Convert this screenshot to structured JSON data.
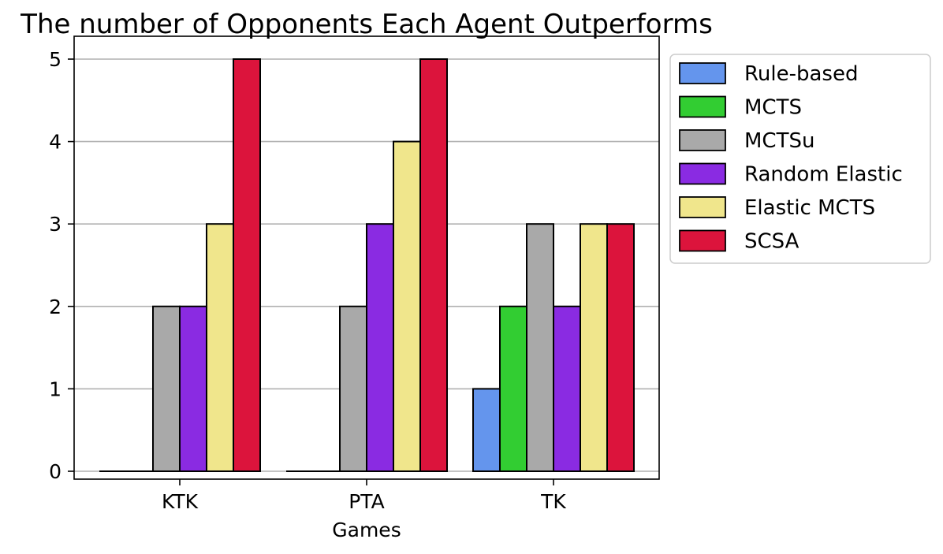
{
  "chart_data": {
    "type": "bar",
    "title": "The number of Opponents Each Agent Outperforms",
    "xlabel": "Games",
    "ylabel": "",
    "categories": [
      "KTK",
      "PTA",
      "TK"
    ],
    "ylim": [
      0,
      5
    ],
    "yticks": [
      "0",
      "1",
      "2",
      "3",
      "4",
      "5"
    ],
    "grid": "horizontal",
    "legend_position": "outside right",
    "series": [
      {
        "name": "Rule-based",
        "color": "#6495ED",
        "values": [
          0,
          0,
          1
        ]
      },
      {
        "name": "MCTS",
        "color": "#32CD32",
        "values": [
          0,
          0,
          2
        ]
      },
      {
        "name": "MCTSu",
        "color": "#A9A9A9",
        "values": [
          2,
          2,
          3
        ]
      },
      {
        "name": "Random Elastic",
        "color": "#8A2BE2",
        "values": [
          2,
          3,
          2
        ]
      },
      {
        "name": "Elastic MCTS",
        "color": "#F0E68C",
        "values": [
          3,
          4,
          3
        ]
      },
      {
        "name": "SCSA",
        "color": "#DC143C",
        "values": [
          5,
          5,
          3
        ]
      }
    ]
  }
}
